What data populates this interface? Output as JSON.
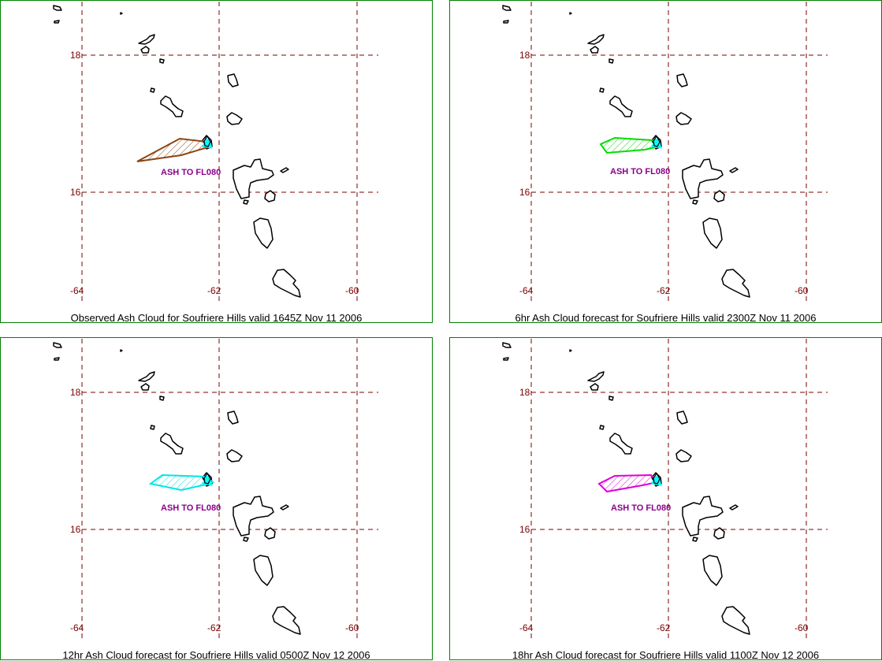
{
  "map": {
    "grid": {
      "lat_lines": [
        18,
        16
      ],
      "lon_lines": [
        -64,
        -62,
        -60
      ],
      "lat_labels": [
        "18",
        "16"
      ],
      "lon_labels": [
        "-64",
        "-62",
        "-60"
      ],
      "color": "#7a0000"
    },
    "ash_label": "ASH TO FL080",
    "volcano_color": "#00ffff",
    "panels": [
      {
        "caption": "Observed Ash Cloud for Soufriere  Hills valid 1645Z Nov 11 2006",
        "cloud_color": "#8b4513"
      },
      {
        "caption": "6hr Ash Cloud forecast for Soufriere  Hills valid 2300Z Nov 11 2006",
        "cloud_color": "#00dd00"
      },
      {
        "caption": "12hr Ash Cloud forecast for Soufriere  Hills valid 0500Z Nov 12 2006",
        "cloud_color": "#00e5e5"
      },
      {
        "caption": "18hr Ash Cloud forecast for Soufriere  Hills valid 1100Z Nov 12 2006",
        "cloud_color": "#dd00dd"
      }
    ]
  }
}
